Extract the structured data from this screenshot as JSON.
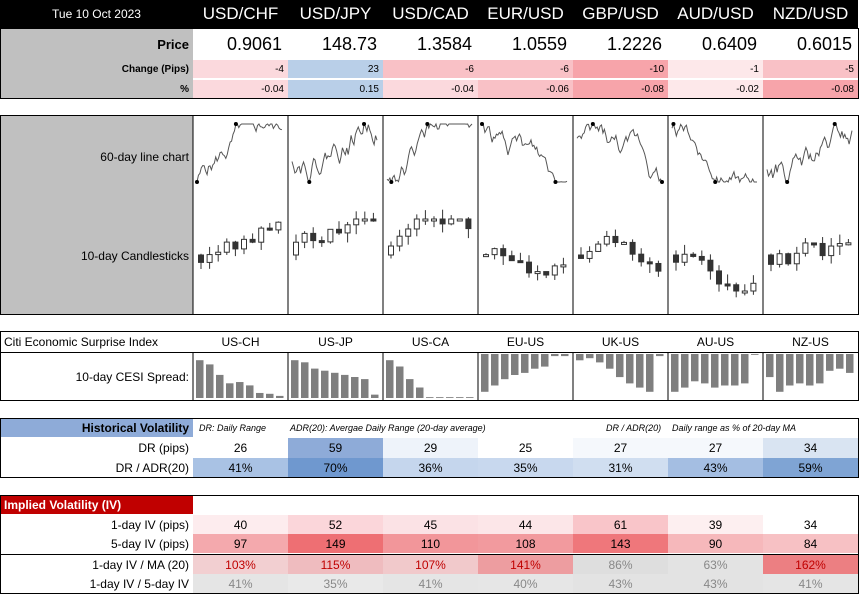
{
  "date": "Tue 10 Oct 2023",
  "pairs": [
    "USD/CHF",
    "USD/JPY",
    "USD/CAD",
    "EUR/USD",
    "GBP/USD",
    "AUD/USD",
    "NZD/USD"
  ],
  "price_label": "Price",
  "change_label": "Change (Pips)",
  "pct_label": "%",
  "prices": [
    "0.9061",
    "148.73",
    "1.3584",
    "1.0559",
    "1.2226",
    "0.6409",
    "0.6015"
  ],
  "changes": [
    "-4",
    "23",
    "-6",
    "-6",
    "-10",
    "-1",
    "-5"
  ],
  "pcts": [
    "-0.04",
    "0.15",
    "-0.04",
    "-0.06",
    "-0.08",
    "-0.02",
    "-0.08"
  ],
  "change_colors": [
    "#fbd9dd",
    "#b9cfe8",
    "#f9c1c6",
    "#f9c1c6",
    "#f7a4aa",
    "#fde8ea",
    "#f9c1c6"
  ],
  "pct_colors": [
    "#fbd9dd",
    "#b9cfe8",
    "#fbd9dd",
    "#f9c1c6",
    "#f7a4aa",
    "#fde8ea",
    "#f7a4aa"
  ],
  "charts": {
    "line_label": "60-day line chart",
    "candle_label": "10-day Candlesticks"
  },
  "cesi": {
    "title": "Citi Economic Surprise Index",
    "spread_label": "10-day CESI Spread:",
    "regions": [
      "US-CH",
      "US-JP",
      "US-CA",
      "EU-US",
      "UK-US",
      "AU-US",
      "NZ-US"
    ],
    "bars": [
      [
        0.9,
        0.8,
        0.55,
        0.35,
        0.38,
        0.3,
        0.12,
        0.1,
        0.05
      ],
      [
        0.9,
        0.85,
        0.7,
        0.65,
        0.6,
        0.55,
        0.5,
        0.45,
        0.08
      ],
      [
        0.9,
        0.75,
        0.45,
        0.25,
        0.02,
        0.02,
        0.02,
        0.02,
        0.02
      ],
      [
        -0.9,
        -0.75,
        -0.6,
        -0.5,
        -0.45,
        -0.35,
        -0.3,
        -0.05,
        -0.05
      ],
      [
        -0.15,
        -0.1,
        -0.2,
        -0.35,
        -0.55,
        -0.7,
        -0.8,
        -0.9,
        -0.05
      ],
      [
        -0.9,
        -0.8,
        -0.65,
        -0.7,
        -0.8,
        -0.75,
        -0.75,
        -0.7,
        -0.02
      ],
      [
        -0.55,
        -0.9,
        -0.75,
        -0.7,
        -0.75,
        -0.7,
        -0.4,
        -0.35,
        -0.45
      ]
    ]
  },
  "hv": {
    "title": "Historical Volatility",
    "note1": "DR: Daily Range",
    "note2": "ADR(20): Avergae Daily Range (20-day average)",
    "note3": "DR / ADR(20)",
    "note4": "Daily range as % of 20-day MA",
    "dr_label": "DR (pips)",
    "adr_label": "DR / ADR(20)",
    "dr": [
      "26",
      "59",
      "29",
      "25",
      "27",
      "27",
      "34"
    ],
    "adr": [
      "41%",
      "70%",
      "36%",
      "35%",
      "31%",
      "43%",
      "59%"
    ],
    "dr_colors": [
      "#ffffff",
      "#8eabd8",
      "#eef3fa",
      "#ffffff",
      "#f5f8fc",
      "#f5f8fc",
      "#d9e4f2"
    ],
    "adr_colors": [
      "#a9c2e4",
      "#6f98cf",
      "#c5d6ed",
      "#c8d8ee",
      "#d0def0",
      "#a4bee2",
      "#7fa4d4"
    ]
  },
  "iv": {
    "title": "Implied Volatility (IV)",
    "iv1_label": "1-day IV (pips)",
    "iv5_label": "5-day IV (pips)",
    "ma_label": "1-day IV / MA (20)",
    "ratio_label": "1-day IV / 5-day IV",
    "iv1": [
      "40",
      "52",
      "45",
      "44",
      "61",
      "39",
      "34"
    ],
    "iv5": [
      "97",
      "149",
      "110",
      "108",
      "143",
      "90",
      "84"
    ],
    "ma": [
      "103%",
      "115%",
      "107%",
      "141%",
      "86%",
      "63%",
      "162%"
    ],
    "ratio": [
      "41%",
      "35%",
      "41%",
      "40%",
      "43%",
      "43%",
      "41%"
    ],
    "iv1_colors": [
      "#fdecee",
      "#fbd6da",
      "#fbe2e5",
      "#fce6e8",
      "#f9c5c9",
      "#fdeff0",
      "#ffffff"
    ],
    "iv5_colors": [
      "#f4a9ad",
      "#ee6f73",
      "#f2969a",
      "#f29a9e",
      "#ef777b",
      "#f6b8bb",
      "#f7c1c4"
    ],
    "ma_colors": [
      "#f2cfd1",
      "#efbcbf",
      "#f1c9cb",
      "#ed9da0",
      "#dedede",
      "#e3e3e3",
      "#ec7f82"
    ],
    "ratio_colors": [
      "#e5e5e5",
      "#e9e9e9",
      "#e5e5e5",
      "#e6e6e6",
      "#e3e3e3",
      "#e3e3e3",
      "#e5e5e5"
    ]
  }
}
